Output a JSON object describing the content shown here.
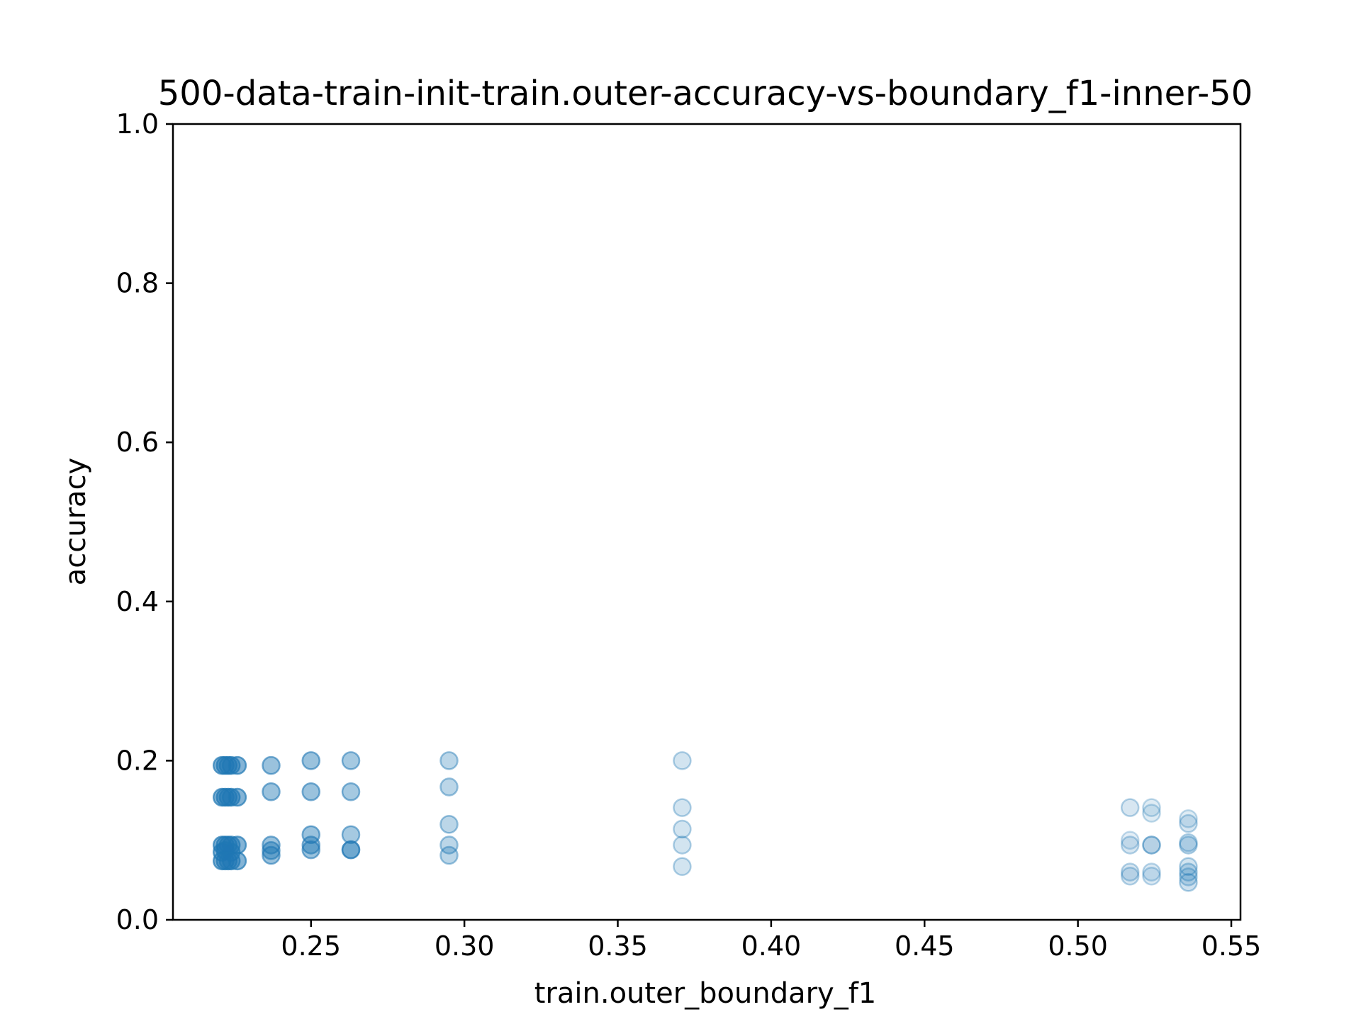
{
  "chart_data": {
    "type": "scatter",
    "title": "500-data-train-init-train.outer-accuracy-vs-boundary_f1-inner-50",
    "xlabel": "train.outer_boundary_f1",
    "ylabel": "accuracy",
    "xlim": [
      0.205,
      0.553
    ],
    "ylim": [
      0.0,
      1.0
    ],
    "xticks": [
      0.25,
      0.3,
      0.35,
      0.4,
      0.45,
      0.5,
      0.55
    ],
    "xtick_labels": [
      "0.25",
      "0.30",
      "0.35",
      "0.40",
      "0.45",
      "0.50",
      "0.55"
    ],
    "yticks": [
      0.0,
      0.2,
      0.4,
      0.6,
      0.8,
      1.0
    ],
    "ytick_labels": [
      "0.0",
      "0.2",
      "0.4",
      "0.6",
      "0.8",
      "1.0"
    ],
    "grid": false,
    "marker_color": "#1f77b4",
    "points": [
      {
        "x": 0.221,
        "y": 0.194,
        "alpha": 0.55
      },
      {
        "x": 0.222,
        "y": 0.194,
        "alpha": 0.55
      },
      {
        "x": 0.223,
        "y": 0.194,
        "alpha": 0.55
      },
      {
        "x": 0.224,
        "y": 0.194,
        "alpha": 0.55
      },
      {
        "x": 0.226,
        "y": 0.194,
        "alpha": 0.55
      },
      {
        "x": 0.221,
        "y": 0.154,
        "alpha": 0.55
      },
      {
        "x": 0.222,
        "y": 0.154,
        "alpha": 0.55
      },
      {
        "x": 0.223,
        "y": 0.154,
        "alpha": 0.55
      },
      {
        "x": 0.224,
        "y": 0.154,
        "alpha": 0.55
      },
      {
        "x": 0.226,
        "y": 0.154,
        "alpha": 0.55
      },
      {
        "x": 0.221,
        "y": 0.094,
        "alpha": 0.55
      },
      {
        "x": 0.222,
        "y": 0.094,
        "alpha": 0.55
      },
      {
        "x": 0.223,
        "y": 0.094,
        "alpha": 0.55
      },
      {
        "x": 0.224,
        "y": 0.094,
        "alpha": 0.55
      },
      {
        "x": 0.226,
        "y": 0.094,
        "alpha": 0.55
      },
      {
        "x": 0.221,
        "y": 0.085,
        "alpha": 0.55
      },
      {
        "x": 0.222,
        "y": 0.087,
        "alpha": 0.55
      },
      {
        "x": 0.224,
        "y": 0.085,
        "alpha": 0.55
      },
      {
        "x": 0.221,
        "y": 0.074,
        "alpha": 0.55
      },
      {
        "x": 0.222,
        "y": 0.074,
        "alpha": 0.55
      },
      {
        "x": 0.223,
        "y": 0.074,
        "alpha": 0.55
      },
      {
        "x": 0.224,
        "y": 0.074,
        "alpha": 0.55
      },
      {
        "x": 0.226,
        "y": 0.074,
        "alpha": 0.55
      },
      {
        "x": 0.237,
        "y": 0.194,
        "alpha": 0.45
      },
      {
        "x": 0.237,
        "y": 0.161,
        "alpha": 0.45
      },
      {
        "x": 0.237,
        "y": 0.094,
        "alpha": 0.45
      },
      {
        "x": 0.237,
        "y": 0.087,
        "alpha": 0.45
      },
      {
        "x": 0.237,
        "y": 0.081,
        "alpha": 0.45
      },
      {
        "x": 0.25,
        "y": 0.2,
        "alpha": 0.45
      },
      {
        "x": 0.25,
        "y": 0.161,
        "alpha": 0.45
      },
      {
        "x": 0.25,
        "y": 0.107,
        "alpha": 0.45
      },
      {
        "x": 0.25,
        "y": 0.094,
        "alpha": 0.45
      },
      {
        "x": 0.25,
        "y": 0.088,
        "alpha": 0.45
      },
      {
        "x": 0.263,
        "y": 0.2,
        "alpha": 0.4
      },
      {
        "x": 0.263,
        "y": 0.161,
        "alpha": 0.4
      },
      {
        "x": 0.263,
        "y": 0.107,
        "alpha": 0.4
      },
      {
        "x": 0.263,
        "y": 0.088,
        "alpha": 0.4
      },
      {
        "x": 0.263,
        "y": 0.088,
        "alpha": 0.4
      },
      {
        "x": 0.295,
        "y": 0.2,
        "alpha": 0.3
      },
      {
        "x": 0.295,
        "y": 0.167,
        "alpha": 0.3
      },
      {
        "x": 0.295,
        "y": 0.12,
        "alpha": 0.3
      },
      {
        "x": 0.295,
        "y": 0.094,
        "alpha": 0.3
      },
      {
        "x": 0.295,
        "y": 0.081,
        "alpha": 0.3
      },
      {
        "x": 0.371,
        "y": 0.2,
        "alpha": 0.2
      },
      {
        "x": 0.371,
        "y": 0.141,
        "alpha": 0.2
      },
      {
        "x": 0.371,
        "y": 0.114,
        "alpha": 0.2
      },
      {
        "x": 0.371,
        "y": 0.094,
        "alpha": 0.2
      },
      {
        "x": 0.371,
        "y": 0.067,
        "alpha": 0.2
      },
      {
        "x": 0.517,
        "y": 0.141,
        "alpha": 0.18
      },
      {
        "x": 0.517,
        "y": 0.1,
        "alpha": 0.12
      },
      {
        "x": 0.517,
        "y": 0.094,
        "alpha": 0.18
      },
      {
        "x": 0.517,
        "y": 0.06,
        "alpha": 0.18
      },
      {
        "x": 0.517,
        "y": 0.055,
        "alpha": 0.18
      },
      {
        "x": 0.524,
        "y": 0.141,
        "alpha": 0.14
      },
      {
        "x": 0.524,
        "y": 0.134,
        "alpha": 0.14
      },
      {
        "x": 0.524,
        "y": 0.094,
        "alpha": 0.18
      },
      {
        "x": 0.524,
        "y": 0.094,
        "alpha": 0.18
      },
      {
        "x": 0.524,
        "y": 0.06,
        "alpha": 0.16
      },
      {
        "x": 0.524,
        "y": 0.055,
        "alpha": 0.16
      },
      {
        "x": 0.536,
        "y": 0.127,
        "alpha": 0.14
      },
      {
        "x": 0.536,
        "y": 0.121,
        "alpha": 0.18
      },
      {
        "x": 0.536,
        "y": 0.097,
        "alpha": 0.2
      },
      {
        "x": 0.536,
        "y": 0.094,
        "alpha": 0.22
      },
      {
        "x": 0.536,
        "y": 0.067,
        "alpha": 0.2
      },
      {
        "x": 0.536,
        "y": 0.06,
        "alpha": 0.22
      },
      {
        "x": 0.536,
        "y": 0.054,
        "alpha": 0.2
      },
      {
        "x": 0.536,
        "y": 0.047,
        "alpha": 0.22
      }
    ]
  }
}
